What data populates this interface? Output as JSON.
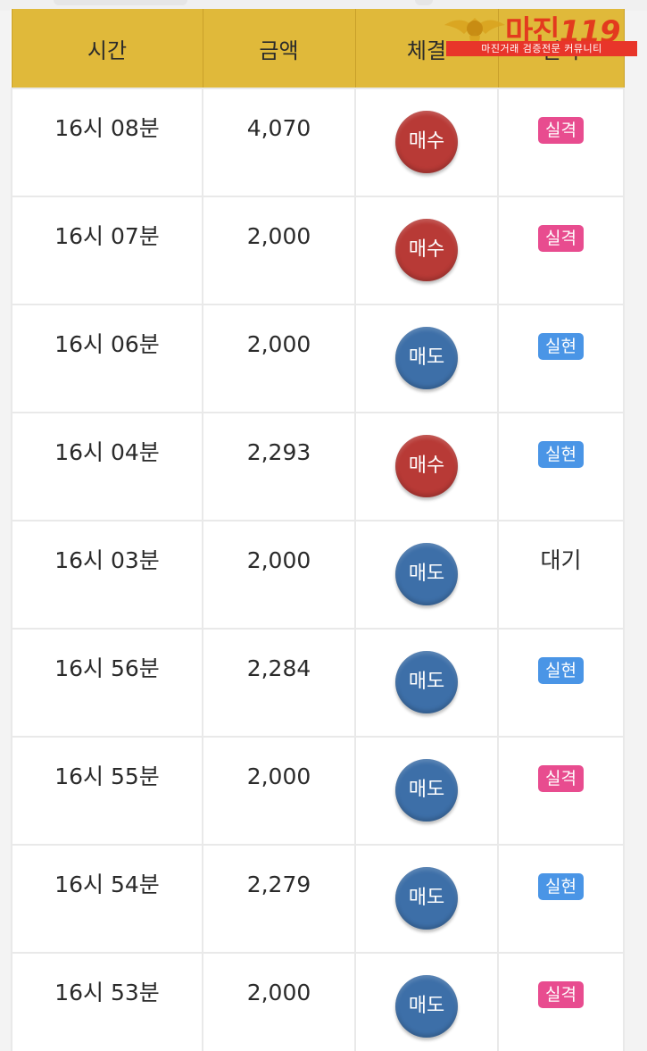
{
  "table": {
    "headers": {
      "time": "시간",
      "amount": "금액",
      "execution": "체결",
      "result": "결과"
    },
    "rows": [
      {
        "time": "16시 08분",
        "amount": "4,070",
        "execution": "매수",
        "exec_type": "buy",
        "result": "실격",
        "result_type": "fail"
      },
      {
        "time": "16시 07분",
        "amount": "2,000",
        "execution": "매수",
        "exec_type": "buy",
        "result": "실격",
        "result_type": "fail"
      },
      {
        "time": "16시 06분",
        "amount": "2,000",
        "execution": "매도",
        "exec_type": "sell",
        "result": "실현",
        "result_type": "real"
      },
      {
        "time": "16시 04분",
        "amount": "2,293",
        "execution": "매수",
        "exec_type": "buy",
        "result": "실현",
        "result_type": "real"
      },
      {
        "time": "16시 03분",
        "amount": "2,000",
        "execution": "매도",
        "exec_type": "sell",
        "result": "대기",
        "result_type": "wait"
      },
      {
        "time": "16시 56분",
        "amount": "2,284",
        "execution": "매도",
        "exec_type": "sell",
        "result": "실현",
        "result_type": "real"
      },
      {
        "time": "16시 55분",
        "amount": "2,000",
        "execution": "매도",
        "exec_type": "sell",
        "result": "실격",
        "result_type": "fail"
      },
      {
        "time": "16시 54분",
        "amount": "2,279",
        "execution": "매도",
        "exec_type": "sell",
        "result": "실현",
        "result_type": "real"
      },
      {
        "time": "16시 53분",
        "amount": "2,000",
        "execution": "매도",
        "exec_type": "sell",
        "result": "실격",
        "result_type": "fail"
      }
    ]
  },
  "watermark": {
    "brand": "마진",
    "brand_number": "119",
    "tagline": "마진거래 검증전문 커뮤니티",
    "icon": "eagle-emblem-icon"
  },
  "colors": {
    "header_bg": "#e0b93a",
    "buy": "#b83a36",
    "sell": "#3d6fa8",
    "fail": "#e84c8f",
    "real": "#4a95e6",
    "logo_red": "#e33a1e"
  }
}
